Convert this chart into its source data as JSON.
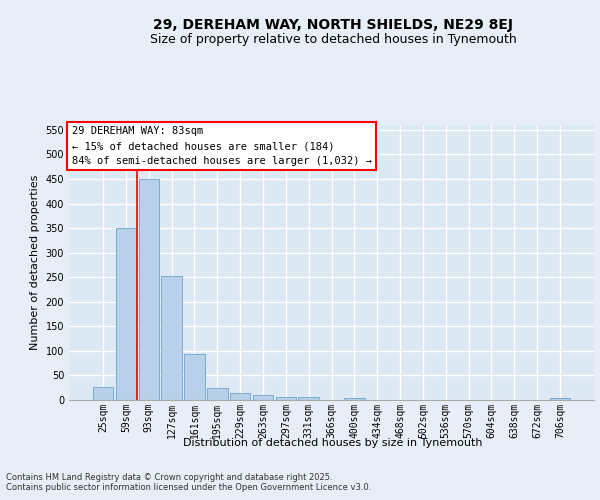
{
  "title": "29, DEREHAM WAY, NORTH SHIELDS, NE29 8EJ",
  "subtitle": "Size of property relative to detached houses in Tynemouth",
  "xlabel": "Distribution of detached houses by size in Tynemouth",
  "ylabel": "Number of detached properties",
  "bar_color": "#b8d0ea",
  "bar_edge_color": "#7aadd4",
  "background_color": "#dde8f5",
  "grid_color": "#ffffff",
  "fig_bg_color": "#e8eef7",
  "categories": [
    "25sqm",
    "59sqm",
    "93sqm",
    "127sqm",
    "161sqm",
    "195sqm",
    "229sqm",
    "263sqm",
    "297sqm",
    "331sqm",
    "366sqm",
    "400sqm",
    "434sqm",
    "468sqm",
    "502sqm",
    "536sqm",
    "570sqm",
    "604sqm",
    "638sqm",
    "672sqm",
    "706sqm"
  ],
  "values": [
    27,
    350,
    450,
    252,
    93,
    25,
    14,
    11,
    6,
    6,
    0,
    5,
    0,
    0,
    0,
    0,
    0,
    0,
    0,
    0,
    5
  ],
  "ylim": [
    0,
    560
  ],
  "yticks": [
    0,
    50,
    100,
    150,
    200,
    250,
    300,
    350,
    400,
    450,
    500,
    550
  ],
  "red_line_x": 1.5,
  "annotation_text": "29 DEREHAM WAY: 83sqm\n← 15% of detached houses are smaller (184)\n84% of semi-detached houses are larger (1,032) →",
  "footer_text": "Contains HM Land Registry data © Crown copyright and database right 2025.\nContains public sector information licensed under the Open Government Licence v3.0.",
  "title_fontsize": 10,
  "subtitle_fontsize": 9,
  "axis_label_fontsize": 8,
  "tick_fontsize": 7,
  "annotation_fontsize": 7.5,
  "footer_fontsize": 6
}
